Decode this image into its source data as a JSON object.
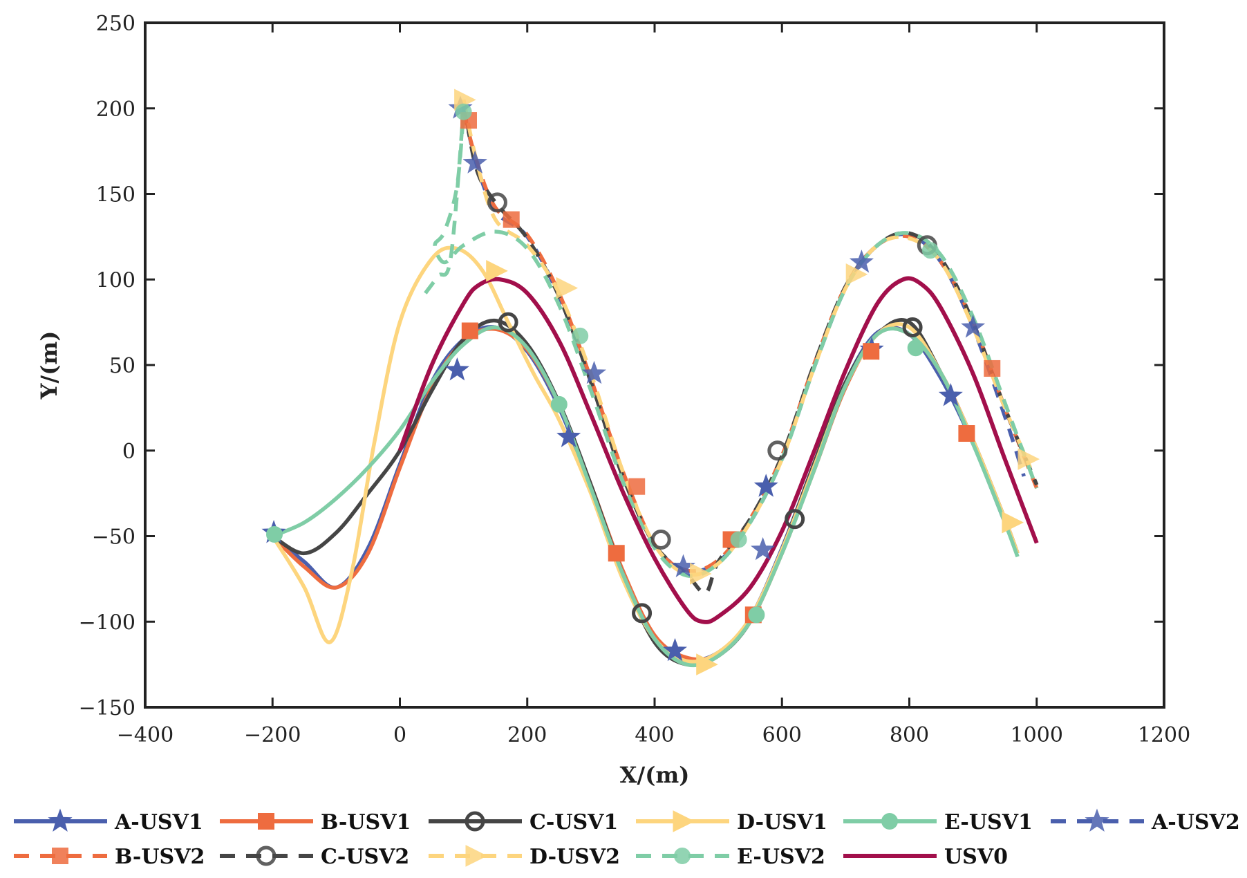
{
  "chart_data": {
    "type": "line",
    "title": "",
    "xlabel": "X/(m)",
    "ylabel": "Y/(m)",
    "xlim": [
      -400,
      1200
    ],
    "ylim": [
      -150,
      250
    ],
    "xticks": [
      -400,
      -200,
      0,
      200,
      400,
      600,
      800,
      1000,
      1200
    ],
    "yticks": [
      -150,
      -100,
      -50,
      0,
      50,
      100,
      150,
      200,
      250
    ],
    "xtick_labels": [
      "−400",
      "−200",
      "0",
      "200",
      "400",
      "600",
      "800",
      "1000",
      "1200"
    ],
    "ytick_labels": [
      "−150",
      "−100",
      "−50",
      "0",
      "50",
      "100",
      "150",
      "200",
      "250"
    ],
    "grid": false,
    "legend_position": "bottom",
    "series": [
      {
        "name": "A-USV1",
        "color": "#4a5fad",
        "dash": "solid",
        "marker": "star",
        "x": [
          -200,
          -150,
          -100,
          -50,
          0,
          50,
          100,
          150,
          200,
          250,
          300,
          350,
          400,
          450,
          500,
          550,
          600,
          650,
          700,
          750,
          800,
          850,
          900,
          950,
          970
        ],
        "y": [
          -50,
          -65,
          -80,
          -57,
          -8,
          40,
          65,
          72,
          58,
          25,
          -22,
          -72,
          -110,
          -122,
          -118,
          -98,
          -57,
          -8,
          40,
          69,
          68,
          42,
          4,
          -42,
          -60
        ],
        "markers_x": [
          -198,
          90,
          265,
          432,
          575,
          741,
          865
        ],
        "markers_y": [
          -48,
          47,
          8,
          -117,
          -21,
          59,
          32
        ]
      },
      {
        "name": "B-USV1",
        "color": "#ee6c3f",
        "dash": "solid",
        "marker": "square",
        "x": [
          -200,
          -150,
          -100,
          -50,
          0,
          50,
          100,
          150,
          200,
          250,
          300,
          350,
          400,
          450,
          500,
          550,
          600,
          650,
          700,
          750,
          800,
          850,
          900,
          950,
          970
        ],
        "y": [
          -50,
          -68,
          -80,
          -60,
          -10,
          37,
          64,
          71,
          59,
          27,
          -20,
          -70,
          -108,
          -121,
          -119,
          -100,
          -60,
          -12,
          37,
          68,
          68,
          45,
          6,
          -40,
          -60
        ],
        "markers_x": [
          110,
          340,
          520,
          555,
          740,
          890
        ],
        "markers_y": [
          70,
          -60,
          -52,
          -96,
          58,
          10
        ]
      },
      {
        "name": "C-USV1",
        "color": "#454545",
        "dash": "solid",
        "marker": "circle",
        "x": [
          -200,
          -150,
          -100,
          -50,
          0,
          50,
          100,
          150,
          200,
          250,
          300,
          350,
          400,
          450,
          500,
          550,
          600,
          650,
          700,
          750,
          800,
          850,
          900,
          950,
          970
        ],
        "y": [
          -50,
          -60,
          -48,
          -25,
          0,
          35,
          65,
          76,
          62,
          28,
          -20,
          -72,
          -112,
          -125,
          -120,
          -100,
          -58,
          -8,
          40,
          68,
          75,
          45,
          6,
          -40,
          -60
        ],
        "markers_x": [
          170,
          380,
          620,
          805
        ],
        "markers_y": [
          75,
          -95,
          -40,
          72
        ]
      },
      {
        "name": "D-USV1",
        "color": "#fdd57e",
        "dash": "solid",
        "marker": "triangle-right",
        "x": [
          -200,
          -150,
          -110,
          -75,
          -40,
          0,
          50,
          90,
          130,
          170,
          210,
          250,
          300,
          350,
          400,
          450,
          500,
          550,
          600,
          650,
          700,
          750,
          800,
          850,
          900,
          950,
          970
        ],
        "y": [
          -50,
          -80,
          -112,
          -70,
          5,
          75,
          112,
          118,
          105,
          75,
          45,
          18,
          -25,
          -75,
          -110,
          -123,
          -118,
          -98,
          -58,
          -10,
          38,
          68,
          72,
          45,
          6,
          -40,
          -60
        ],
        "markers_x": [
          150,
          480,
          960
        ],
        "markers_y": [
          105,
          -125,
          -42
        ]
      },
      {
        "name": "E-USV1",
        "color": "#7fcda6",
        "dash": "solid",
        "marker": "circle-filled",
        "x": [
          -200,
          -150,
          -100,
          -50,
          0,
          50,
          100,
          150,
          200,
          250,
          300,
          350,
          400,
          450,
          500,
          550,
          600,
          650,
          700,
          750,
          800,
          850,
          900,
          950,
          970
        ],
        "y": [
          -50,
          -42,
          -28,
          -10,
          12,
          40,
          62,
          72,
          60,
          27,
          -22,
          -72,
          -110,
          -125,
          -120,
          -100,
          -60,
          -12,
          38,
          68,
          68,
          45,
          4,
          -42,
          -62
        ],
        "markers_x": [
          -197,
          250,
          560,
          810
        ],
        "markers_y": [
          -49,
          27,
          -96,
          60
        ]
      },
      {
        "name": "A-USV2",
        "color": "#4a5fad",
        "dash": "dashed",
        "marker": "star",
        "x": [
          100,
          120,
          150,
          200,
          250,
          300,
          350,
          400,
          450,
          500,
          550,
          600,
          650,
          700,
          750,
          800,
          850,
          900,
          950,
          980
        ],
        "y": [
          200,
          168,
          140,
          125,
          90,
          40,
          -15,
          -55,
          -70,
          -65,
          -42,
          -5,
          48,
          95,
          120,
          126,
          110,
          72,
          20,
          -15
        ],
        "markers_x": [
          95,
          118,
          305,
          445,
          570,
          725,
          900
        ],
        "markers_y": [
          200,
          168,
          45,
          -68,
          -58,
          110,
          72
        ]
      },
      {
        "name": "B-USV2",
        "color": "#ee6c3f",
        "dash": "dashed",
        "marker": "square",
        "x": [
          100,
          120,
          150,
          200,
          250,
          300,
          350,
          400,
          450,
          500,
          550,
          600,
          650,
          700,
          750,
          800,
          850,
          900,
          950,
          1000
        ],
        "y": [
          198,
          170,
          142,
          126,
          92,
          42,
          -12,
          -55,
          -70,
          -64,
          -40,
          -3,
          50,
          96,
          120,
          125,
          110,
          75,
          25,
          -22
        ],
        "markers_x": [
          108,
          175,
          372,
          930
        ],
        "markers_y": [
          193,
          135,
          -21,
          48
        ]
      },
      {
        "name": "C-USV2",
        "color": "#454545",
        "dash": "dashed",
        "marker": "circle",
        "x": [
          100,
          120,
          150,
          200,
          250,
          300,
          350,
          400,
          450,
          480,
          500,
          550,
          600,
          650,
          700,
          750,
          800,
          850,
          900,
          950,
          1000
        ],
        "y": [
          205,
          165,
          145,
          124,
          90,
          40,
          -15,
          -55,
          -72,
          -83,
          -65,
          -40,
          -3,
          50,
          96,
          120,
          127,
          112,
          75,
          25,
          -20
        ],
        "markers_x": [
          153,
          410,
          593,
          828
        ],
        "markers_y": [
          145,
          -52,
          0,
          120
        ]
      },
      {
        "name": "D-USV2",
        "color": "#fdd57e",
        "dash": "dashed",
        "marker": "triangle-right",
        "x": [
          100,
          120,
          150,
          200,
          250,
          300,
          350,
          400,
          450,
          500,
          550,
          600,
          650,
          700,
          750,
          800,
          850,
          900,
          950,
          990
        ],
        "y": [
          205,
          170,
          135,
          120,
          92,
          45,
          -12,
          -55,
          -72,
          -66,
          -42,
          -5,
          48,
          95,
          120,
          124,
          110,
          72,
          25,
          -10
        ],
        "markers_x": [
          100,
          260,
          470,
          715,
          985
        ],
        "markers_y": [
          205,
          95,
          -72,
          103,
          -5
        ]
      },
      {
        "name": "E-USV2",
        "color": "#7fcda6",
        "dash": "dashed",
        "marker": "circle-filled",
        "x": [
          40,
          60,
          80,
          100,
          90,
          70,
          55,
          70,
          100,
          150,
          200,
          250,
          300,
          350,
          400,
          450,
          500,
          550,
          600,
          650,
          700,
          750,
          800,
          850,
          900,
          950,
          1000
        ],
        "y": [
          92,
          102,
          113,
          200,
          155,
          128,
          120,
          110,
          120,
          128,
          118,
          85,
          35,
          -18,
          -57,
          -73,
          -66,
          -42,
          -5,
          48,
          95,
          120,
          127,
          114,
          78,
          28,
          -22
        ],
        "markers_x": [
          100,
          283,
          532,
          833
        ],
        "markers_y": [
          198,
          67,
          -52,
          117
        ]
      },
      {
        "name": "USV0",
        "color": "#a20f4b",
        "dash": "solid",
        "marker": "none",
        "x": [
          0,
          50,
          100,
          125,
          158,
          200,
          250,
          300,
          350,
          400,
          450,
          475,
          500,
          550,
          600,
          650,
          700,
          750,
          790,
          820,
          850,
          900,
          950,
          1000
        ],
        "y": [
          0,
          50,
          86,
          97,
          100,
          92,
          64,
          21,
          -24,
          -63,
          -93,
          -100,
          -97,
          -80,
          -47,
          -1,
          47,
          86,
          100,
          97,
          83,
          45,
          -5,
          -54
        ],
        "markers_x": [],
        "markers_y": []
      }
    ]
  }
}
